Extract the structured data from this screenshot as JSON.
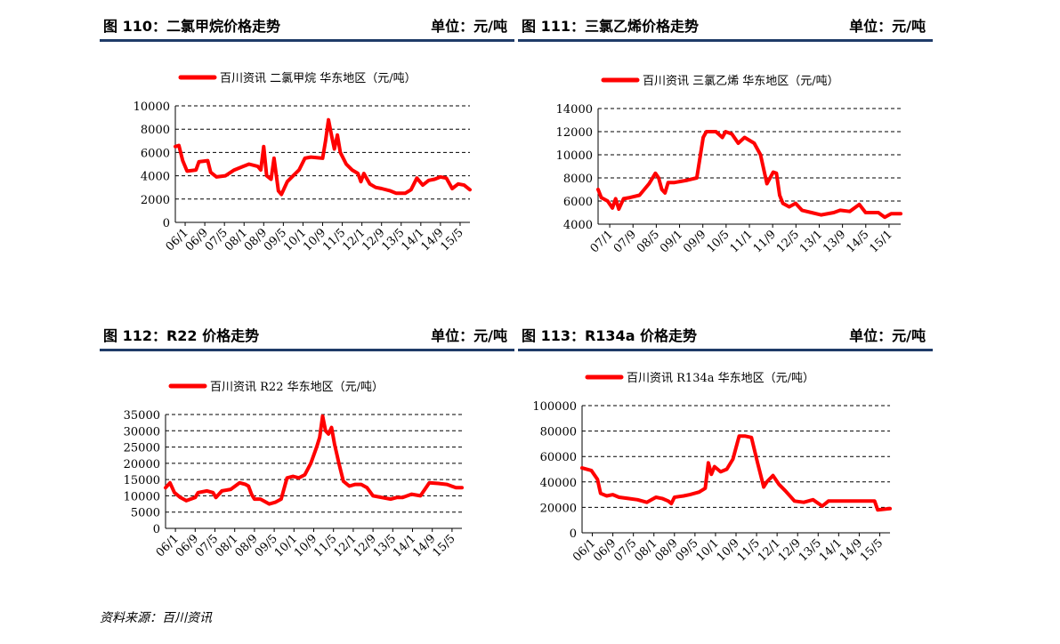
{
  "source": "资料来源：百川资讯",
  "charts": [
    {
      "title": "图 110：二氯甲烷价格走势",
      "unit": "单位：元/吨",
      "legend": "百川资讯  二氯甲烷  华东地区（元/吨）",
      "line_color": "#ff0000",
      "ylim": [
        0,
        10000
      ],
      "yticks": [
        0,
        2000,
        4000,
        6000,
        8000,
        10000
      ],
      "xticks": [
        "06/1",
        "06/9",
        "07/5",
        "08/1",
        "08/9",
        "09/5",
        "10/1",
        "10/9",
        "11/5",
        "12/1",
        "12/9",
        "13/5",
        "14/1",
        "14/9",
        "15/5"
      ],
      "points": [
        [
          0,
          6500
        ],
        [
          0.12,
          6600
        ],
        [
          0.25,
          5300
        ],
        [
          0.4,
          4400
        ],
        [
          0.7,
          4500
        ],
        [
          0.8,
          5200
        ],
        [
          1.1,
          5300
        ],
        [
          1.2,
          4300
        ],
        [
          1.4,
          3900
        ],
        [
          1.7,
          4000
        ],
        [
          2.0,
          4500
        ],
        [
          2.3,
          4800
        ],
        [
          2.5,
          5000
        ],
        [
          2.8,
          4800
        ],
        [
          2.9,
          4500
        ],
        [
          3.0,
          6500
        ],
        [
          3.1,
          4000
        ],
        [
          3.25,
          3700
        ],
        [
          3.35,
          5500
        ],
        [
          3.5,
          2700
        ],
        [
          3.6,
          2400
        ],
        [
          3.8,
          3500
        ],
        [
          4.0,
          4000
        ],
        [
          4.2,
          4500
        ],
        [
          4.4,
          5500
        ],
        [
          4.6,
          5600
        ],
        [
          5.0,
          5500
        ],
        [
          5.1,
          7000
        ],
        [
          5.2,
          8800
        ],
        [
          5.3,
          7500
        ],
        [
          5.4,
          6300
        ],
        [
          5.5,
          7500
        ],
        [
          5.6,
          6000
        ],
        [
          5.8,
          5000
        ],
        [
          6.0,
          4500
        ],
        [
          6.2,
          4200
        ],
        [
          6.3,
          3500
        ],
        [
          6.4,
          4200
        ],
        [
          6.6,
          3300
        ],
        [
          6.8,
          3000
        ],
        [
          7.0,
          2900
        ],
        [
          7.3,
          2700
        ],
        [
          7.5,
          2500
        ],
        [
          7.8,
          2500
        ],
        [
          8.0,
          2800
        ],
        [
          8.2,
          3800
        ],
        [
          8.4,
          3200
        ],
        [
          8.6,
          3600
        ],
        [
          8.8,
          3700
        ],
        [
          9.0,
          3900
        ],
        [
          9.2,
          3800
        ],
        [
          9.4,
          2900
        ],
        [
          9.6,
          3300
        ],
        [
          9.8,
          3200
        ],
        [
          10.0,
          2800
        ]
      ],
      "xspan": 10.0
    },
    {
      "title": "图 111：三氯乙烯价格走势",
      "unit": "单位：元/吨",
      "legend": "百川资讯  三氯乙烯  华东地区（元/吨）",
      "line_color": "#ff0000",
      "ylim": [
        4000,
        14000
      ],
      "yticks": [
        4000,
        6000,
        8000,
        10000,
        12000,
        14000
      ],
      "xticks": [
        "07/1",
        "07/9",
        "08/5",
        "09/1",
        "09/9",
        "10/5",
        "11/1",
        "11/9",
        "12/5",
        "13/1",
        "13/9",
        "14/5",
        "15/1"
      ],
      "points": [
        [
          0,
          7000
        ],
        [
          0.1,
          6300
        ],
        [
          0.3,
          6000
        ],
        [
          0.45,
          5400
        ],
        [
          0.55,
          6200
        ],
        [
          0.65,
          5300
        ],
        [
          0.8,
          6200
        ],
        [
          1.0,
          6300
        ],
        [
          1.3,
          6500
        ],
        [
          1.6,
          7500
        ],
        [
          1.8,
          8400
        ],
        [
          1.9,
          8000
        ],
        [
          2.0,
          7000
        ],
        [
          2.1,
          6700
        ],
        [
          2.2,
          7600
        ],
        [
          2.4,
          7600
        ],
        [
          2.6,
          7700
        ],
        [
          2.8,
          7800
        ],
        [
          3.1,
          8000
        ],
        [
          3.3,
          11500
        ],
        [
          3.4,
          12000
        ],
        [
          3.7,
          12000
        ],
        [
          3.9,
          11500
        ],
        [
          4.0,
          12000
        ],
        [
          4.2,
          11800
        ],
        [
          4.4,
          11000
        ],
        [
          4.6,
          11500
        ],
        [
          4.9,
          11000
        ],
        [
          5.1,
          10000
        ],
        [
          5.3,
          7500
        ],
        [
          5.5,
          8500
        ],
        [
          5.6,
          8400
        ],
        [
          5.7,
          6500
        ],
        [
          5.8,
          5800
        ],
        [
          6.0,
          5500
        ],
        [
          6.2,
          5800
        ],
        [
          6.4,
          5200
        ],
        [
          6.7,
          5000
        ],
        [
          7.0,
          4800
        ],
        [
          7.4,
          5000
        ],
        [
          7.6,
          5200
        ],
        [
          7.9,
          5100
        ],
        [
          8.2,
          5700
        ],
        [
          8.4,
          5000
        ],
        [
          8.8,
          5000
        ],
        [
          9.0,
          4600
        ],
        [
          9.2,
          4900
        ],
        [
          9.5,
          4900
        ]
      ],
      "xspan": 9.5
    },
    {
      "title": "图 112：R22 价格走势",
      "unit": "单位：元/吨",
      "legend": "百川资讯  R22  华东地区（元/吨）",
      "line_color": "#ff0000",
      "ylim": [
        0,
        35000
      ],
      "yticks": [
        0,
        5000,
        10000,
        15000,
        20000,
        25000,
        30000,
        35000
      ],
      "xticks": [
        "06/1",
        "06/9",
        "07/5",
        "08/1",
        "08/9",
        "09/5",
        "10/1",
        "10/9",
        "11/5",
        "12/1",
        "12/9",
        "13/5",
        "14/1",
        "14/9",
        "15/5"
      ],
      "points": [
        [
          0,
          12500
        ],
        [
          0.15,
          14000
        ],
        [
          0.3,
          11000
        ],
        [
          0.5,
          9500
        ],
        [
          0.7,
          8500
        ],
        [
          1.0,
          9500
        ],
        [
          1.1,
          11000
        ],
        [
          1.4,
          11500
        ],
        [
          1.6,
          11000
        ],
        [
          1.7,
          9500
        ],
        [
          1.9,
          11500
        ],
        [
          2.2,
          12000
        ],
        [
          2.5,
          14000
        ],
        [
          2.7,
          13500
        ],
        [
          2.8,
          13000
        ],
        [
          2.9,
          10500
        ],
        [
          3.0,
          9000
        ],
        [
          3.2,
          9000
        ],
        [
          3.5,
          7500
        ],
        [
          3.7,
          8000
        ],
        [
          3.9,
          9000
        ],
        [
          4.1,
          15500
        ],
        [
          4.3,
          16000
        ],
        [
          4.5,
          15500
        ],
        [
          4.7,
          16500
        ],
        [
          4.9,
          20000
        ],
        [
          5.1,
          25000
        ],
        [
          5.2,
          28000
        ],
        [
          5.3,
          34500
        ],
        [
          5.4,
          30000
        ],
        [
          5.5,
          29000
        ],
        [
          5.6,
          31000
        ],
        [
          5.7,
          26000
        ],
        [
          5.85,
          20000
        ],
        [
          6.0,
          14500
        ],
        [
          6.2,
          13000
        ],
        [
          6.4,
          13500
        ],
        [
          6.6,
          13500
        ],
        [
          6.8,
          12500
        ],
        [
          7.0,
          10000
        ],
        [
          7.3,
          9500
        ],
        [
          7.6,
          9000
        ],
        [
          7.8,
          9500
        ],
        [
          8.0,
          9500
        ],
        [
          8.3,
          10500
        ],
        [
          8.6,
          10000
        ],
        [
          8.9,
          14000
        ],
        [
          9.2,
          13800
        ],
        [
          9.5,
          13500
        ],
        [
          9.8,
          12500
        ],
        [
          10.0,
          12500
        ]
      ],
      "xspan": 10.0
    },
    {
      "title": "图 113：R134a 价格走势",
      "unit": "单位：元/吨",
      "legend": "百川资讯  R134a  华东地区（元/吨）",
      "line_color": "#ff0000",
      "ylim": [
        0,
        100000
      ],
      "yticks": [
        0,
        20000,
        40000,
        60000,
        80000,
        100000
      ],
      "xticks": [
        "06/1",
        "06/9",
        "07/5",
        "08/1",
        "08/9",
        "09/5",
        "10/1",
        "10/9",
        "11/5",
        "12/1",
        "12/9",
        "13/5",
        "14/1",
        "14/9",
        "15/5"
      ],
      "points": [
        [
          0,
          51000
        ],
        [
          0.3,
          49000
        ],
        [
          0.5,
          42000
        ],
        [
          0.6,
          31000
        ],
        [
          0.8,
          29000
        ],
        [
          1.0,
          30000
        ],
        [
          1.2,
          28000
        ],
        [
          1.5,
          27000
        ],
        [
          1.8,
          26000
        ],
        [
          2.1,
          24000
        ],
        [
          2.4,
          28000
        ],
        [
          2.6,
          27000
        ],
        [
          2.8,
          25000
        ],
        [
          2.9,
          23000
        ],
        [
          3.0,
          28000
        ],
        [
          3.3,
          29000
        ],
        [
          3.5,
          30000
        ],
        [
          3.8,
          32000
        ],
        [
          4.0,
          35000
        ],
        [
          4.1,
          55000
        ],
        [
          4.2,
          46000
        ],
        [
          4.3,
          52000
        ],
        [
          4.5,
          48000
        ],
        [
          4.7,
          50000
        ],
        [
          4.9,
          58000
        ],
        [
          5.1,
          76000
        ],
        [
          5.3,
          76000
        ],
        [
          5.5,
          75000
        ],
        [
          5.7,
          55000
        ],
        [
          5.9,
          36000
        ],
        [
          6.0,
          40000
        ],
        [
          6.2,
          45000
        ],
        [
          6.4,
          38000
        ],
        [
          6.6,
          33000
        ],
        [
          6.9,
          25000
        ],
        [
          7.2,
          24000
        ],
        [
          7.5,
          26000
        ],
        [
          7.8,
          21000
        ],
        [
          8.0,
          25000
        ],
        [
          8.5,
          25000
        ],
        [
          9.0,
          25000
        ],
        [
          9.5,
          25000
        ],
        [
          9.6,
          18000
        ],
        [
          10.0,
          19000
        ]
      ],
      "xspan": 10.0
    }
  ]
}
